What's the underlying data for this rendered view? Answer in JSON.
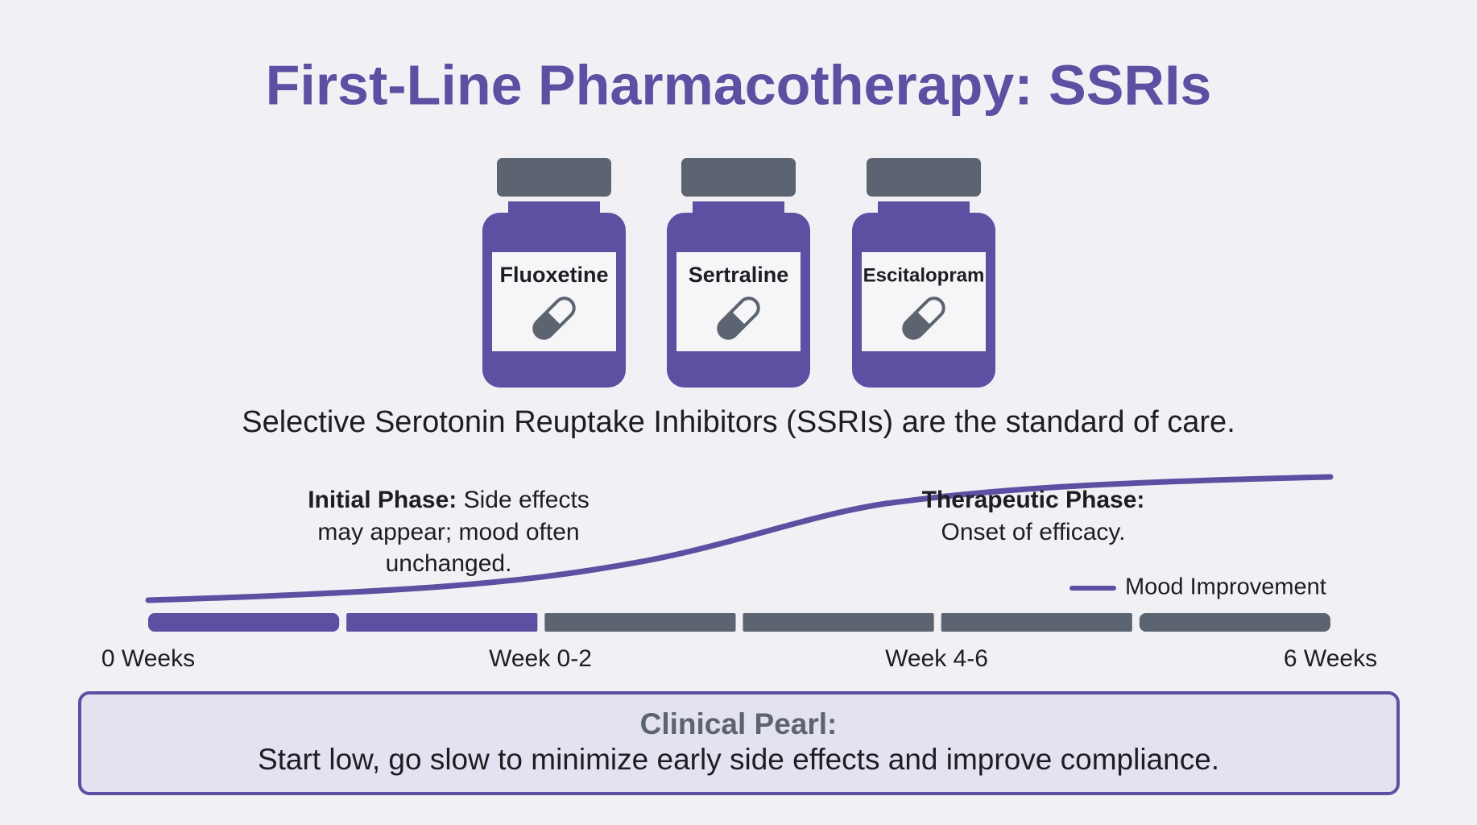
{
  "header": {
    "title": "First-Line Pharmacotherapy: SSRIs"
  },
  "drugs": [
    "Fluoxetine",
    "Sertraline",
    "Escitalopram"
  ],
  "subtitle": "Selective Serotonin Reuptake Inhibitors (SSRIs) are the standard of care.",
  "phases": [
    {
      "label": "Initial Phase:",
      "lines": [
        "Side effects",
        "may appear; mood often",
        "unchanged."
      ]
    },
    {
      "label": "Therapeutic Phase:",
      "lines": [
        "Onset of efficacy."
      ]
    }
  ],
  "legend": "Mood Improvement",
  "timeline": [
    "0 Weeks",
    "Week 0-2",
    "Week 4-6",
    "6 Weeks"
  ],
  "pearl": {
    "title": "Clinical Pearl:",
    "text": "Start low, go slow to minimize early side effects and improve compliance."
  }
}
